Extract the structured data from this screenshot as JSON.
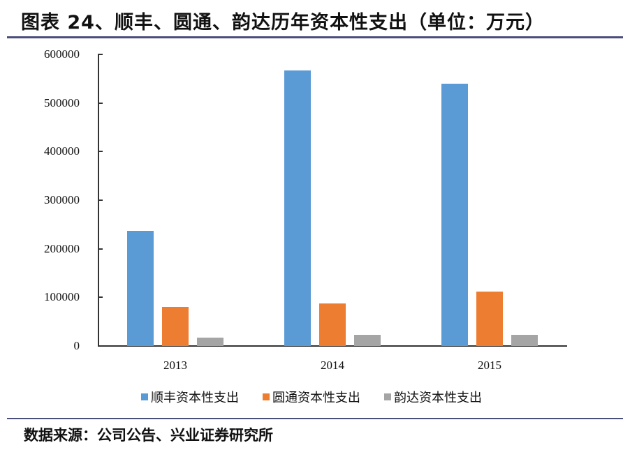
{
  "header": {
    "title": "图表 24、顺丰、圆通、韵达历年资本性支出（单位：万元）"
  },
  "footer": {
    "source": "数据来源：公司公告、兴业证券研究所"
  },
  "colors": {
    "sf": "#5b9bd5",
    "yto": "#ed7d31",
    "yunda": "#a5a5a5",
    "rule": "#4a4e7a"
  },
  "axis": {
    "y_ticks": [
      "0",
      "100000",
      "200000",
      "300000",
      "400000",
      "500000",
      "600000"
    ],
    "x_ticks": [
      "2013",
      "2014",
      "2015"
    ]
  },
  "legend": [
    {
      "label": "顺丰资本性支出",
      "color": "#5b9bd5"
    },
    {
      "label": "圆通资本性支出",
      "color": "#ed7d31"
    },
    {
      "label": "韵达资本性支出",
      "color": "#a5a5a5"
    }
  ],
  "chart_data": {
    "type": "bar",
    "title": "图表 24、顺丰、圆通、韵达历年资本性支出（单位：万元）",
    "xlabel": "",
    "ylabel": "",
    "categories": [
      "2013",
      "2014",
      "2015"
    ],
    "series": [
      {
        "name": "顺丰资本性支出",
        "color": "#5b9bd5",
        "values": [
          237000,
          567000,
          540000
        ]
      },
      {
        "name": "圆通资本性支出",
        "color": "#ed7d31",
        "values": [
          80000,
          88000,
          112000
        ]
      },
      {
        "name": "韵达资本性支出",
        "color": "#a5a5a5",
        "values": [
          17000,
          23000,
          23000
        ]
      }
    ],
    "ylim": [
      0,
      600000
    ],
    "y_ticks": [
      0,
      100000,
      200000,
      300000,
      400000,
      500000,
      600000
    ],
    "grid": false,
    "legend_position": "bottom"
  }
}
